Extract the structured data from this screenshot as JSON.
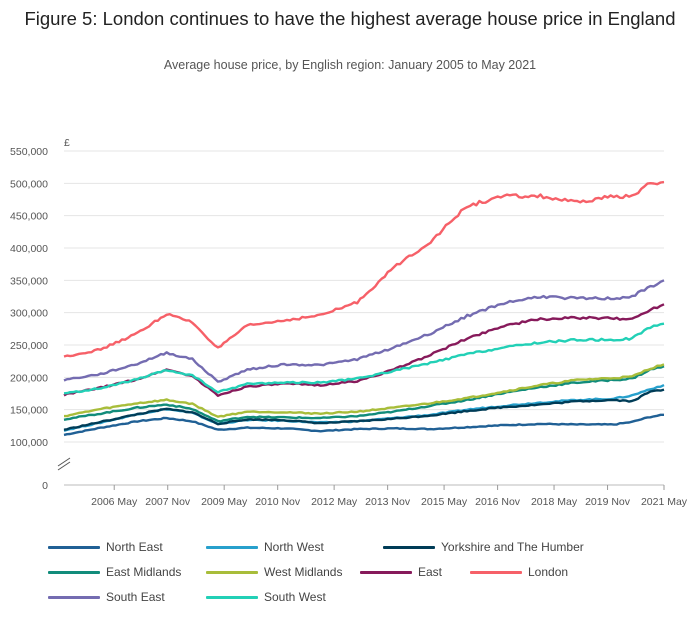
{
  "title": "Figure 5: London continues to have the highest average house price in England",
  "subtitle": "Average house price, by English region: January 2005 to May 2021",
  "chart_data": {
    "type": "line",
    "ylabel": "£",
    "ylim": [
      0,
      550000
    ],
    "yticks": [
      0,
      100000,
      150000,
      200000,
      250000,
      300000,
      350000,
      400000,
      450000,
      500000,
      550000
    ],
    "ytick_labels": [
      "0",
      "100,000",
      "150,000",
      "200,000",
      "250,000",
      "300,000",
      "350,000",
      "400,000",
      "450,000",
      "500,000",
      "550,000"
    ],
    "axis_break": true,
    "xlim": [
      2005.0,
      2021.37
    ],
    "xticks": [
      2006.37,
      2007.83,
      2009.37,
      2010.83,
      2012.37,
      2013.83,
      2015.37,
      2016.83,
      2018.37,
      2019.83,
      2021.37
    ],
    "xtick_labels": [
      "2006 May",
      "2007 Nov",
      "2009 May",
      "2010 Nov",
      "2012 May",
      "2013 Nov",
      "2015 May",
      "2016 Nov",
      "2018 May",
      "2019 Nov",
      "2021 May"
    ],
    "grid": true,
    "legend_position": "bottom",
    "series": [
      {
        "name": "North East",
        "color": "#206095",
        "x": [
          2005.0,
          2006.0,
          2007.0,
          2007.8,
          2008.5,
          2009.2,
          2010.0,
          2011.0,
          2012.0,
          2013.0,
          2014.0,
          2015.0,
          2016.0,
          2017.0,
          2018.0,
          2019.0,
          2020.0,
          2020.5,
          2021.0,
          2021.37
        ],
        "y": [
          111000,
          122000,
          132000,
          137000,
          132000,
          119000,
          122000,
          121000,
          117000,
          120000,
          121000,
          120000,
          123000,
          126000,
          128000,
          127000,
          127000,
          131000,
          139000,
          142000
        ]
      },
      {
        "name": "North West",
        "color": "#27a0cc",
        "x": [
          2005.0,
          2006.0,
          2007.0,
          2007.8,
          2008.5,
          2009.2,
          2010.0,
          2011.0,
          2012.0,
          2013.0,
          2014.0,
          2015.0,
          2016.0,
          2017.0,
          2018.0,
          2019.0,
          2020.0,
          2020.5,
          2021.0,
          2021.37
        ],
        "y": [
          118000,
          130000,
          143000,
          151000,
          145000,
          128000,
          134000,
          133000,
          130000,
          132000,
          137000,
          142000,
          150000,
          156000,
          161000,
          165000,
          167000,
          172000,
          182000,
          188000
        ]
      },
      {
        "name": "Yorkshire and The Humber",
        "color": "#003c57",
        "x": [
          2005.0,
          2006.0,
          2007.0,
          2007.8,
          2008.5,
          2009.2,
          2010.0,
          2011.0,
          2012.0,
          2013.0,
          2014.0,
          2015.0,
          2016.0,
          2017.0,
          2018.0,
          2019.0,
          2020.0,
          2020.5,
          2021.0,
          2021.37
        ],
        "y": [
          119000,
          131000,
          143000,
          151000,
          146000,
          128000,
          135000,
          134000,
          129000,
          132000,
          136000,
          141000,
          148000,
          154000,
          158000,
          163000,
          165000,
          163000,
          178000,
          181000
        ]
      },
      {
        "name": "East Midlands",
        "color": "#118c7b",
        "x": [
          2005.0,
          2006.0,
          2007.0,
          2007.8,
          2008.5,
          2009.2,
          2010.0,
          2011.0,
          2012.0,
          2013.0,
          2014.0,
          2015.0,
          2016.0,
          2017.0,
          2018.0,
          2019.0,
          2020.0,
          2020.5,
          2021.0,
          2021.37
        ],
        "y": [
          135000,
          144000,
          153000,
          158000,
          151000,
          132000,
          139000,
          138000,
          137000,
          140000,
          147000,
          156000,
          165000,
          176000,
          185000,
          192000,
          196000,
          198000,
          212000,
          217000
        ]
      },
      {
        "name": "West Midlands",
        "color": "#a8bd3a",
        "x": [
          2005.0,
          2006.0,
          2007.0,
          2007.8,
          2008.5,
          2009.2,
          2010.0,
          2011.0,
          2012.0,
          2013.0,
          2014.0,
          2015.0,
          2016.0,
          2017.0,
          2018.0,
          2019.0,
          2020.0,
          2020.5,
          2021.0,
          2021.37
        ],
        "y": [
          140000,
          151000,
          160000,
          165000,
          159000,
          139000,
          147000,
          146000,
          144000,
          147000,
          153000,
          160000,
          168000,
          178000,
          188000,
          196000,
          199000,
          201000,
          214000,
          220000
        ]
      },
      {
        "name": "East",
        "color": "#871a5b",
        "x": [
          2005.0,
          2006.0,
          2007.0,
          2007.8,
          2008.5,
          2009.2,
          2010.0,
          2011.0,
          2012.0,
          2013.0,
          2014.0,
          2015.0,
          2016.0,
          2017.0,
          2018.0,
          2019.0,
          2020.0,
          2020.5,
          2021.0,
          2021.37
        ],
        "y": [
          173000,
          184000,
          197000,
          212000,
          202000,
          172000,
          186000,
          190000,
          188000,
          194000,
          212000,
          235000,
          260000,
          280000,
          290000,
          292000,
          291000,
          290000,
          305000,
          313000
        ]
      },
      {
        "name": "London",
        "color": "#f66068",
        "x": [
          2005.0,
          2006.0,
          2007.0,
          2007.8,
          2008.5,
          2009.2,
          2010.0,
          2011.0,
          2012.0,
          2013.0,
          2014.0,
          2015.0,
          2016.0,
          2017.0,
          2018.0,
          2019.0,
          2020.0,
          2020.5,
          2021.0,
          2021.37
        ],
        "y": [
          232000,
          243000,
          268000,
          298000,
          285000,
          245000,
          280000,
          288000,
          296000,
          316000,
          370000,
          410000,
          465000,
          480000,
          480000,
          470000,
          480000,
          480000,
          500000,
          502000
        ]
      },
      {
        "name": "South East",
        "color": "#746cb1",
        "x": [
          2005.0,
          2006.0,
          2007.0,
          2007.8,
          2008.5,
          2009.2,
          2010.0,
          2011.0,
          2012.0,
          2013.0,
          2014.0,
          2015.0,
          2016.0,
          2017.0,
          2018.0,
          2019.0,
          2020.0,
          2020.5,
          2021.0,
          2021.37
        ],
        "y": [
          196000,
          205000,
          221000,
          238000,
          228000,
          193000,
          212000,
          220000,
          219000,
          228000,
          246000,
          268000,
          295000,
          315000,
          325000,
          322000,
          322000,
          325000,
          340000,
          350000
        ]
      },
      {
        "name": "South West",
        "color": "#22d0b6",
        "x": [
          2005.0,
          2006.0,
          2007.0,
          2007.8,
          2008.5,
          2009.2,
          2010.0,
          2011.0,
          2012.0,
          2013.0,
          2014.0,
          2015.0,
          2016.0,
          2017.0,
          2018.0,
          2019.0,
          2020.0,
          2020.5,
          2021.0,
          2021.37
        ],
        "y": [
          175000,
          183000,
          197000,
          211000,
          203000,
          177000,
          190000,
          192000,
          192000,
          198000,
          210000,
          222000,
          236000,
          246000,
          254000,
          258000,
          258000,
          260000,
          278000,
          283000
        ]
      }
    ]
  }
}
